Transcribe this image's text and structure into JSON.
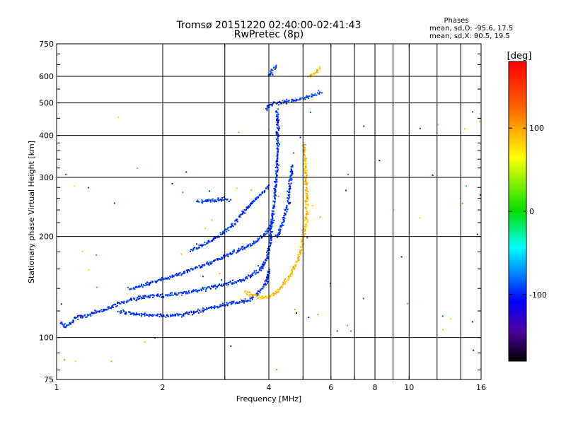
{
  "chart_data": {
    "type": "scatter",
    "title": "Tromsø 20151220 02:40:00-02:41:43",
    "subtitle": "RwPretec (8p)",
    "xlabel": "Frequency [MHz]",
    "ylabel": "Stationary phase Virtual Height [km]",
    "x_scale": "log",
    "y_scale": "log",
    "xlim": [
      1,
      16
    ],
    "ylim": [
      75,
      750
    ],
    "x_ticks": [
      1,
      2,
      4,
      6,
      8,
      10,
      16
    ],
    "x_minor_ticks": [
      3,
      5,
      7,
      9,
      12,
      14
    ],
    "y_ticks": [
      75,
      100,
      200,
      300,
      400,
      500,
      600,
      750
    ],
    "y_minor_ticks": [
      150,
      250
    ],
    "grid": true,
    "stats": {
      "heading": "Phases",
      "line_o": "mean, sd,O: -95.6, 17.5",
      "line_x": "mean, sd,X:  90.5, 19.5"
    },
    "colorbar": {
      "label": "[deg]",
      "range": [
        -180,
        180
      ],
      "ticks": [
        {
          "value": 100,
          "label": "100"
        },
        {
          "value": 0,
          "label": "0"
        },
        {
          "value": -100,
          "label": "-100"
        }
      ]
    },
    "series": [
      {
        "mode": "O",
        "mean_phase_deg": -95.6,
        "sd_deg": 17.5,
        "traces": [
          {
            "points": [
              [
                1.02,
                112
              ],
              [
                1.05,
                108
              ],
              [
                1.1,
                112
              ],
              [
                1.15,
                116
              ],
              [
                1.22,
                117
              ],
              [
                1.3,
                120
              ],
              [
                1.4,
                123
              ],
              [
                1.5,
                127
              ],
              [
                1.6,
                130
              ],
              [
                1.7,
                132
              ],
              [
                1.8,
                133
              ],
              [
                1.9,
                134
              ],
              [
                2.0,
                134
              ],
              [
                2.2,
                136
              ],
              [
                2.4,
                138
              ],
              [
                2.6,
                140
              ],
              [
                2.8,
                143
              ],
              [
                3.0,
                145
              ],
              [
                3.2,
                147
              ],
              [
                3.4,
                150
              ],
              [
                3.6,
                155
              ],
              [
                3.8,
                162
              ],
              [
                3.95,
                175
              ],
              [
                4.02,
                195
              ],
              [
                4.05,
                215
              ],
              [
                4.1,
                240
              ],
              [
                4.15,
                270
              ],
              [
                4.18,
                300
              ],
              [
                4.2,
                330
              ],
              [
                4.22,
                360
              ],
              [
                4.23,
                400
              ],
              [
                4.22,
                440
              ],
              [
                4.2,
                480
              ]
            ]
          },
          {
            "points": [
              [
                1.5,
                120
              ],
              [
                1.7,
                118
              ],
              [
                1.9,
                117
              ],
              [
                2.1,
                117
              ],
              [
                2.3,
                118
              ],
              [
                2.5,
                120
              ],
              [
                2.7,
                123
              ],
              [
                2.9,
                125
              ],
              [
                3.1,
                127
              ],
              [
                3.3,
                128
              ],
              [
                3.5,
                130
              ],
              [
                3.7,
                136
              ],
              [
                3.9,
                145
              ],
              [
                4.0,
                160
              ]
            ]
          },
          {
            "points": [
              [
                1.6,
                140
              ],
              [
                1.8,
                145
              ],
              [
                2.0,
                150
              ],
              [
                2.2,
                155
              ],
              [
                2.4,
                160
              ],
              [
                2.6,
                165
              ],
              [
                2.8,
                170
              ],
              [
                3.0,
                176
              ],
              [
                3.3,
                184
              ],
              [
                3.6,
                192
              ],
              [
                3.9,
                205
              ],
              [
                4.1,
                225
              ]
            ]
          },
          {
            "points": [
              [
                4.2,
                200
              ],
              [
                4.3,
                212
              ],
              [
                4.4,
                228
              ],
              [
                4.5,
                248
              ],
              [
                4.55,
                270
              ],
              [
                4.6,
                300
              ],
              [
                4.65,
                330
              ]
            ]
          },
          {
            "points": [
              [
                2.4,
                182
              ],
              [
                2.6,
                190
              ],
              [
                2.8,
                198
              ],
              [
                3.0,
                208
              ],
              [
                3.2,
                222
              ],
              [
                3.4,
                240
              ],
              [
                3.6,
                255
              ],
              [
                3.8,
                270
              ],
              [
                4.0,
                285
              ]
            ]
          },
          {
            "points": [
              [
                2.5,
                255
              ],
              [
                2.7,
                257
              ],
              [
                2.9,
                258
              ],
              [
                3.1,
                258
              ]
            ]
          },
          {
            "points": [
              [
                3.9,
                480
              ],
              [
                4.1,
                500
              ],
              [
                4.4,
                505
              ],
              [
                4.8,
                515
              ],
              [
                5.2,
                525
              ],
              [
                5.6,
                540
              ]
            ]
          },
          {
            "points": [
              [
                4.0,
                600
              ],
              [
                4.1,
                635
              ],
              [
                4.2,
                650
              ]
            ]
          }
        ]
      },
      {
        "mode": "X",
        "mean_phase_deg": 90.5,
        "sd_deg": 19.5,
        "traces": [
          {
            "points": [
              [
                3.4,
                137
              ],
              [
                3.6,
                134
              ],
              [
                3.8,
                132
              ],
              [
                4.0,
                133
              ],
              [
                4.2,
                138
              ],
              [
                4.4,
                145
              ],
              [
                4.6,
                155
              ],
              [
                4.8,
                170
              ],
              [
                4.95,
                190
              ],
              [
                5.05,
                215
              ],
              [
                5.1,
                240
              ],
              [
                5.1,
                270
              ],
              [
                5.08,
                300
              ],
              [
                5.05,
                340
              ],
              [
                5.0,
                380
              ]
            ]
          },
          {
            "points": [
              [
                5.2,
                600
              ],
              [
                5.4,
                620
              ],
              [
                5.6,
                640
              ]
            ]
          }
        ]
      }
    ]
  }
}
